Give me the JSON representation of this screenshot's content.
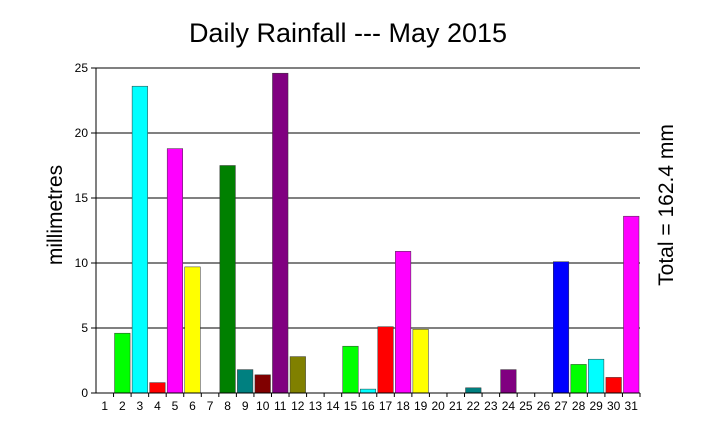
{
  "chart_data": {
    "type": "bar",
    "title": "Daily Rainfall --- May 2015",
    "ylabel": "millimetres",
    "right_label": "Total = 162.4 mm",
    "xlabel": "",
    "ylim": [
      0,
      25
    ],
    "yticks": [
      0,
      5,
      10,
      15,
      20,
      25
    ],
    "grid": true,
    "legend": "none",
    "categories": [
      "1",
      "2",
      "3",
      "4",
      "5",
      "6",
      "7",
      "8",
      "9",
      "10",
      "11",
      "12",
      "13",
      "14",
      "15",
      "16",
      "17",
      "18",
      "19",
      "20",
      "21",
      "22",
      "23",
      "24",
      "25",
      "26",
      "27",
      "28",
      "29",
      "30",
      "31"
    ],
    "values": [
      0,
      4.6,
      23.6,
      0.8,
      18.8,
      9.7,
      0,
      17.5,
      1.8,
      1.4,
      24.6,
      2.8,
      0,
      0,
      3.6,
      0.3,
      5.1,
      10.9,
      4.9,
      0,
      0,
      0.4,
      0,
      1.8,
      0,
      0,
      10.1,
      2.2,
      2.6,
      1.2,
      13.6
    ],
    "colors": [
      "#000000",
      "#00ff00",
      "#00ffff",
      "#ff0000",
      "#ff00ff",
      "#ffff00",
      "#000000",
      "#008000",
      "#008080",
      "#800000",
      "#800080",
      "#808000",
      "#000000",
      "#000000",
      "#00ff00",
      "#00ffff",
      "#ff0000",
      "#ff00ff",
      "#ffff00",
      "#000000",
      "#000000",
      "#008080",
      "#000000",
      "#800080",
      "#000000",
      "#000000",
      "#0000ff",
      "#00ff00",
      "#00ffff",
      "#ff0000",
      "#ff00ff"
    ]
  }
}
